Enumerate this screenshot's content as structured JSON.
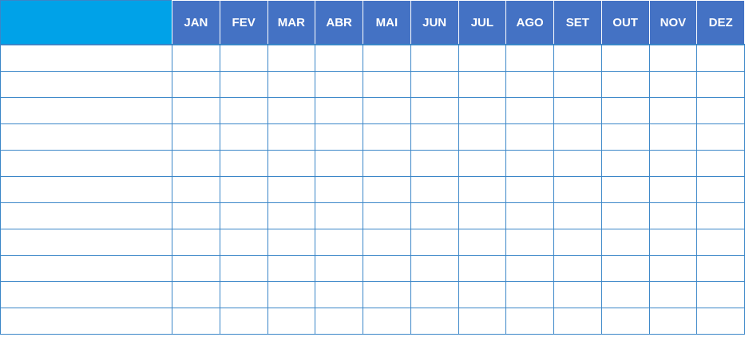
{
  "table": {
    "corner_label": "",
    "months": [
      "JAN",
      "FEV",
      "MAR",
      "ABR",
      "MAI",
      "JUN",
      "JUL",
      "AGO",
      "SET",
      "OUT",
      "NOV",
      "DEZ"
    ],
    "rows": [
      {
        "label": "",
        "values": [
          "",
          "",
          "",
          "",
          "",
          "",
          "",
          "",
          "",
          "",
          "",
          ""
        ]
      },
      {
        "label": "",
        "values": [
          "",
          "",
          "",
          "",
          "",
          "",
          "",
          "",
          "",
          "",
          "",
          ""
        ]
      },
      {
        "label": "",
        "values": [
          "",
          "",
          "",
          "",
          "",
          "",
          "",
          "",
          "",
          "",
          "",
          ""
        ]
      },
      {
        "label": "",
        "values": [
          "",
          "",
          "",
          "",
          "",
          "",
          "",
          "",
          "",
          "",
          "",
          ""
        ]
      },
      {
        "label": "",
        "values": [
          "",
          "",
          "",
          "",
          "",
          "",
          "",
          "",
          "",
          "",
          "",
          ""
        ]
      },
      {
        "label": "",
        "values": [
          "",
          "",
          "",
          "",
          "",
          "",
          "",
          "",
          "",
          "",
          "",
          ""
        ]
      },
      {
        "label": "",
        "values": [
          "",
          "",
          "",
          "",
          "",
          "",
          "",
          "",
          "",
          "",
          "",
          ""
        ]
      },
      {
        "label": "",
        "values": [
          "",
          "",
          "",
          "",
          "",
          "",
          "",
          "",
          "",
          "",
          "",
          ""
        ]
      },
      {
        "label": "",
        "values": [
          "",
          "",
          "",
          "",
          "",
          "",
          "",
          "",
          "",
          "",
          "",
          ""
        ]
      },
      {
        "label": "",
        "values": [
          "",
          "",
          "",
          "",
          "",
          "",
          "",
          "",
          "",
          "",
          "",
          ""
        ]
      },
      {
        "label": "",
        "values": [
          "",
          "",
          "",
          "",
          "",
          "",
          "",
          "",
          "",
          "",
          "",
          ""
        ]
      }
    ]
  },
  "colors": {
    "header_bg": "#4472c4",
    "corner_bg": "#00a2e8",
    "grid_line": "#3a86c8",
    "header_text": "#ffffff"
  }
}
